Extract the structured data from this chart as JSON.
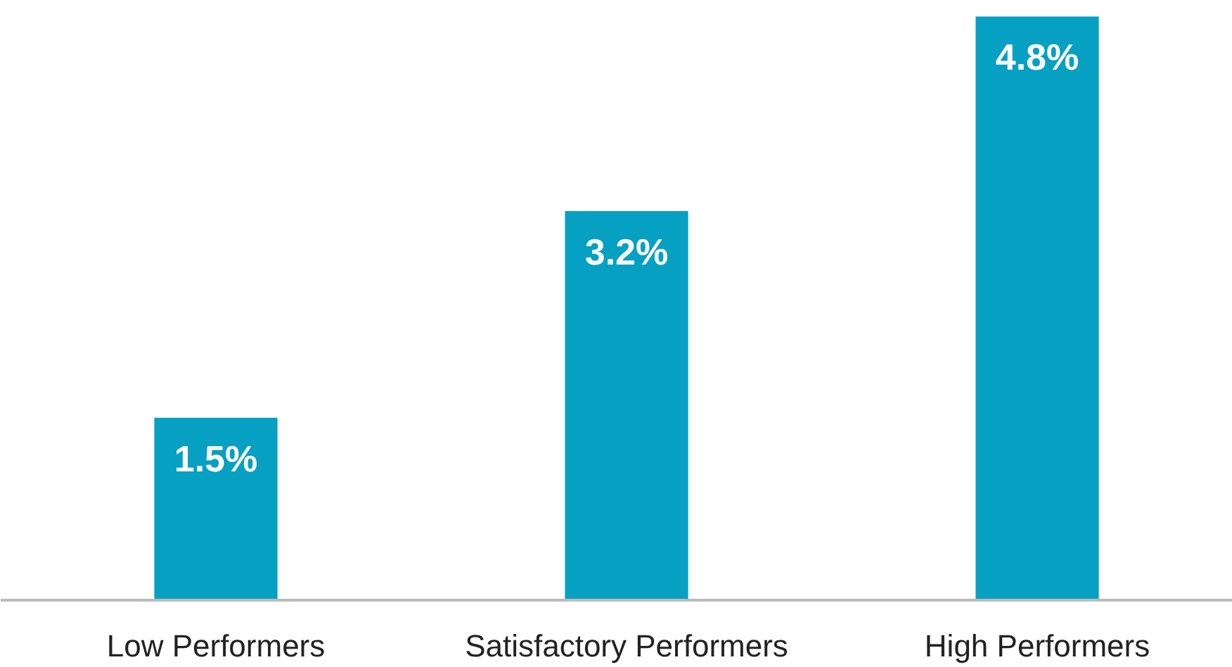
{
  "chart_data": {
    "type": "bar",
    "categories": [
      "Low Performers",
      "Satisfactory Performers",
      "High Performers"
    ],
    "values": [
      1.5,
      3.2,
      4.8
    ],
    "color": "#05a0c2",
    "value_labels": [
      "1.5%",
      "3.2%",
      "4.8%"
    ],
    "grid": false
  }
}
